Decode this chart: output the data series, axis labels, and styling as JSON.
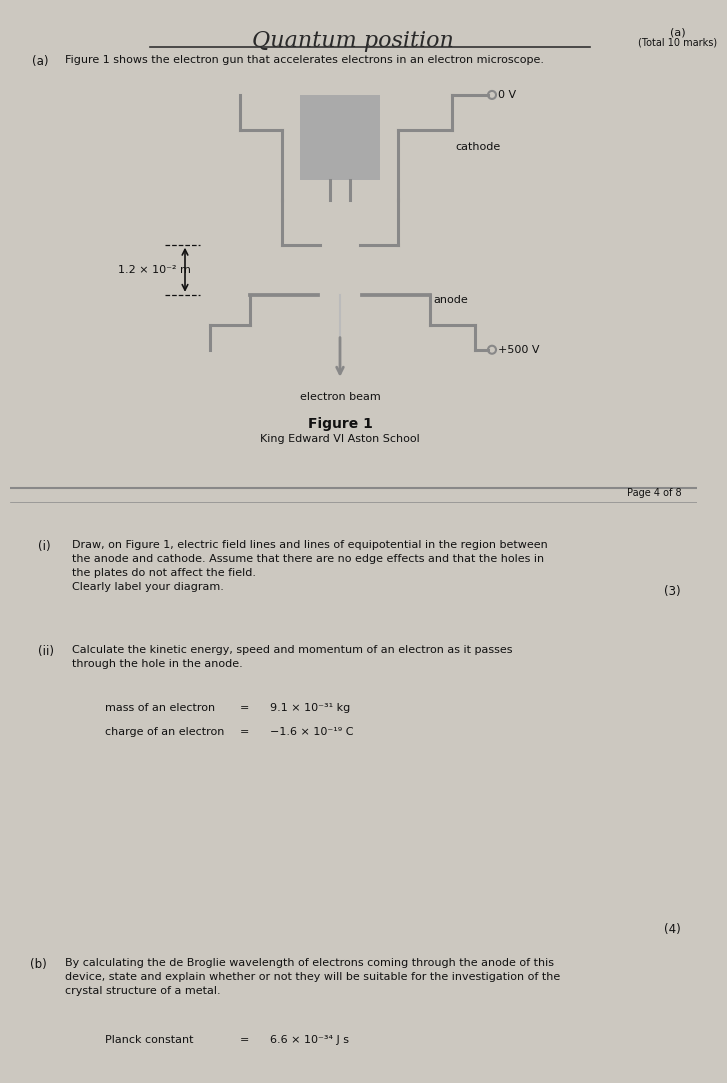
{
  "page_bg_top": "#ccc8c0",
  "page_bg_bot": "#d4d0c8",
  "header_text": "Quantum position",
  "total_marks_a": "(a)",
  "total_marks": "(Total 10 marks)",
  "part_a_label": "(a)",
  "part_a_intro": "Figure 1 shows the electron gun that accelerates electrons in an electron microscope.",
  "figure_label": "Figure 1",
  "school_name": "King Edward VI Aston School",
  "page_info": "Page 4 of 8",
  "cathode_label": "cathode",
  "anode_label": "anode",
  "electron_beam_label": "electron beam",
  "voltage_0V": "0 V",
  "voltage_500V": "+500 V",
  "distance_label": "1.2 × 10⁻² m",
  "part_i_label": "(i)",
  "part_i_marks": "(3)",
  "part_i_text": "Draw, on Figure 1, electric field lines and lines of equipotential in the region between\nthe anode and cathode. Assume that there are no edge effects and that the holes in\nthe plates do not affect the field.\nClearly label your diagram.",
  "part_ii_label": "(ii)",
  "part_ii_text": "Calculate the kinetic energy, speed and momentum of an electron as it passes\nthrough the hole in the anode.",
  "mass_label": "mass of an electron",
  "mass_eq": "=",
  "mass_value": "9.1 × 10⁻³¹ kg",
  "charge_label": "charge of an electron",
  "charge_eq": "=",
  "charge_value": "−1.6 × 10⁻¹⁹ C",
  "part_b_label": "(b)",
  "part_b_marks": "(4)",
  "part_b_text": "By calculating the de Broglie wavelength of electrons coming through the anode of this\ndevice, state and explain whether or not they will be suitable for the investigation of the\ncrystal structure of a metal.",
  "planck_label": "Planck constant",
  "planck_eq": "=",
  "planck_value": "6.6 × 10⁻³⁴ J s",
  "text_color": "#111111",
  "gc": "#888888",
  "heater_color": "#aaaaaa",
  "divider_color": "#888888"
}
